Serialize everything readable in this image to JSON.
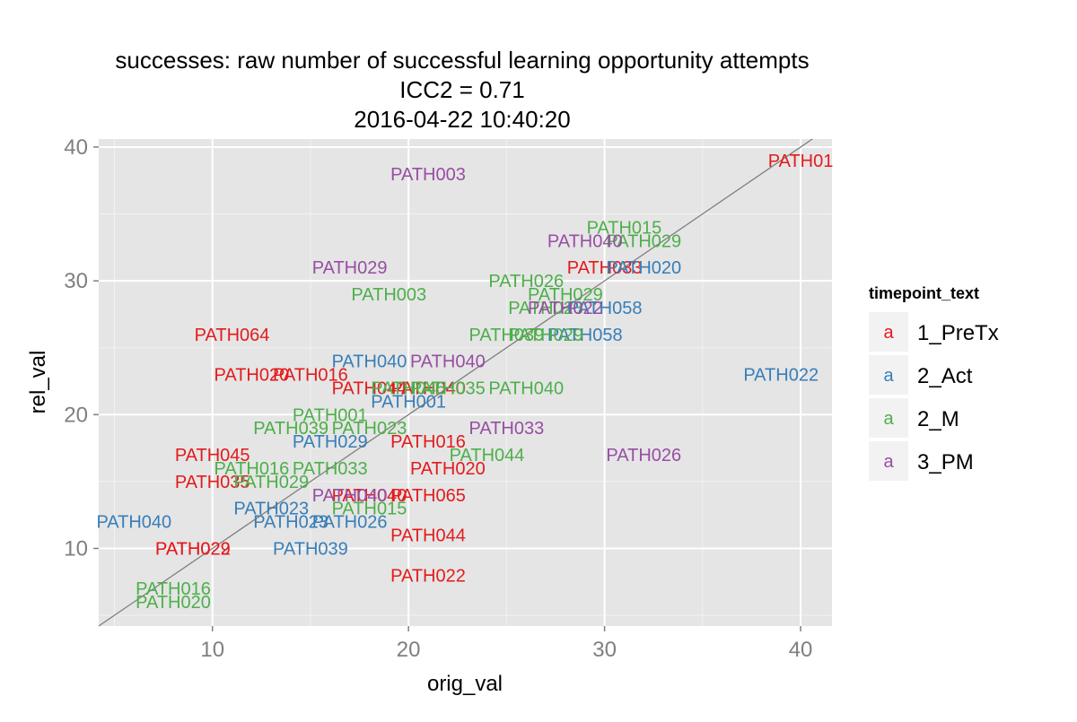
{
  "chart_data": {
    "type": "scatter",
    "title": [
      "successes: raw number of successful learning opportunity attempts",
      "ICC2 = 0.71",
      "2016-04-22 10:40:20"
    ],
    "xlabel": "orig_val",
    "ylabel": "rel_val",
    "xlim": [
      4.2,
      41.6
    ],
    "ylim": [
      4.2,
      40.6
    ],
    "xticks": [
      10,
      20,
      30,
      40
    ],
    "yticks": [
      10,
      20,
      30,
      40
    ],
    "grid": true,
    "reference_line": "y = x",
    "legend": {
      "title": "timepoint_text",
      "placement": "right",
      "glyph": "a",
      "entries": [
        "1_PreTx",
        "2_Act",
        "2_M",
        "3_PM"
      ]
    },
    "colors": {
      "1_PreTx": "#E41A1C",
      "2_Act": "#377EB8",
      "2_M": "#4DAF4A",
      "3_PM": "#984EA3"
    },
    "series": [
      {
        "name": "1_PreTx",
        "points": [
          {
            "x": 40,
            "y": 39,
            "label": "PATH01"
          },
          {
            "x": 30,
            "y": 31,
            "label": "PATH033"
          },
          {
            "x": 11,
            "y": 26,
            "label": "PATH064"
          },
          {
            "x": 12,
            "y": 23,
            "label": "PATH020"
          },
          {
            "x": 15,
            "y": 23,
            "label": "PATH016"
          },
          {
            "x": 18,
            "y": 22,
            "label": "PATH044"
          },
          {
            "x": 21,
            "y": 22,
            "label": "PATH040"
          },
          {
            "x": 10,
            "y": 17,
            "label": "PATH045"
          },
          {
            "x": 10,
            "y": 15,
            "label": "PATH035"
          },
          {
            "x": 21,
            "y": 18,
            "label": "PATH016"
          },
          {
            "x": 22,
            "y": 16,
            "label": "PATH020"
          },
          {
            "x": 18,
            "y": 14,
            "label": "PATH040"
          },
          {
            "x": 21,
            "y": 14,
            "label": "PATH065"
          },
          {
            "x": 9,
            "y": 10,
            "label": "PATH029"
          },
          {
            "x": 9,
            "y": 10,
            "label": "PATH022"
          },
          {
            "x": 21,
            "y": 11,
            "label": "PATH044"
          },
          {
            "x": 21,
            "y": 8,
            "label": "PATH022"
          }
        ]
      },
      {
        "name": "2_Act",
        "points": [
          {
            "x": 32,
            "y": 31,
            "label": "PATH020"
          },
          {
            "x": 30,
            "y": 28,
            "label": "PATH058"
          },
          {
            "x": 29,
            "y": 26,
            "label": "PATH058"
          },
          {
            "x": 39,
            "y": 23,
            "label": "PATH022"
          },
          {
            "x": 18,
            "y": 24,
            "label": "PATH040"
          },
          {
            "x": 20,
            "y": 21,
            "label": "PATH001"
          },
          {
            "x": 16,
            "y": 18,
            "label": "PATH029"
          },
          {
            "x": 13,
            "y": 13,
            "label": "PATH023"
          },
          {
            "x": 14,
            "y": 12,
            "label": "PATH023"
          },
          {
            "x": 17,
            "y": 12,
            "label": "PATH026"
          },
          {
            "x": 15,
            "y": 10,
            "label": "PATH039"
          },
          {
            "x": 6,
            "y": 12,
            "label": "PATH040"
          }
        ]
      },
      {
        "name": "2_M",
        "points": [
          {
            "x": 31,
            "y": 34,
            "label": "PATH015"
          },
          {
            "x": 32,
            "y": 33,
            "label": "PATH029"
          },
          {
            "x": 26,
            "y": 30,
            "label": "PATH026"
          },
          {
            "x": 28,
            "y": 29,
            "label": "PATH029"
          },
          {
            "x": 19,
            "y": 29,
            "label": "PATH003"
          },
          {
            "x": 27,
            "y": 28,
            "label": "PATH023"
          },
          {
            "x": 25,
            "y": 26,
            "label": "PATH039"
          },
          {
            "x": 27,
            "y": 26,
            "label": "PATH029"
          },
          {
            "x": 20,
            "y": 22,
            "label": "PATH045"
          },
          {
            "x": 22,
            "y": 22,
            "label": "PATH035"
          },
          {
            "x": 26,
            "y": 22,
            "label": "PATH040"
          },
          {
            "x": 16,
            "y": 20,
            "label": "PATH001"
          },
          {
            "x": 14,
            "y": 19,
            "label": "PATH039"
          },
          {
            "x": 18,
            "y": 19,
            "label": "PATH023"
          },
          {
            "x": 24,
            "y": 17,
            "label": "PATH044"
          },
          {
            "x": 16,
            "y": 16,
            "label": "PATH033"
          },
          {
            "x": 12,
            "y": 16,
            "label": "PATH016"
          },
          {
            "x": 13,
            "y": 15,
            "label": "PATH029"
          },
          {
            "x": 18,
            "y": 13,
            "label": "PATH015"
          },
          {
            "x": 8,
            "y": 7,
            "label": "PATH016"
          },
          {
            "x": 8,
            "y": 6,
            "label": "PATH020"
          }
        ]
      },
      {
        "name": "3_PM",
        "points": [
          {
            "x": 21,
            "y": 38,
            "label": "PATH003"
          },
          {
            "x": 29,
            "y": 33,
            "label": "PATH040"
          },
          {
            "x": 17,
            "y": 31,
            "label": "PATH029"
          },
          {
            "x": 28,
            "y": 28,
            "label": "PATH022"
          },
          {
            "x": 22,
            "y": 24,
            "label": "PATH040"
          },
          {
            "x": 25,
            "y": 19,
            "label": "PATH033"
          },
          {
            "x": 32,
            "y": 17,
            "label": "PATH026"
          },
          {
            "x": 17,
            "y": 14,
            "label": "PATH040"
          }
        ]
      }
    ]
  }
}
